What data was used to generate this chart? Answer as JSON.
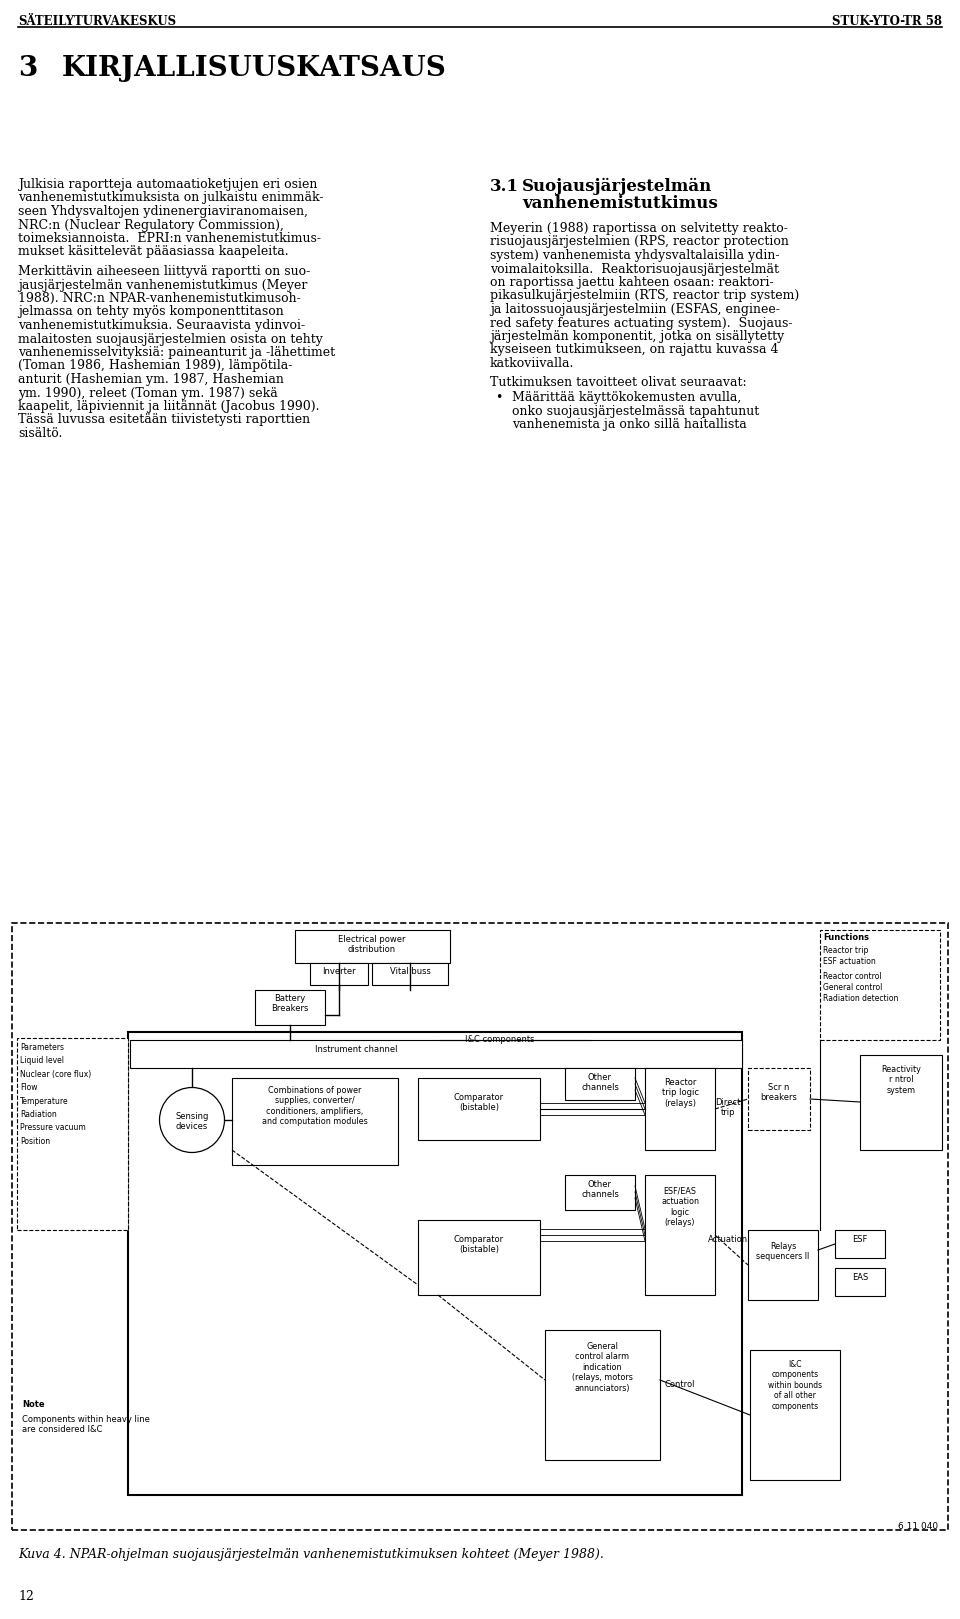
{
  "header_left": "SÄTEILYTURVAKESKUS",
  "header_right": "STUK-YTO-TR 58",
  "chapter_num": "3",
  "chapter_title": "KIRJALLISUUSKATSAUS",
  "page_num": "12",
  "bg_color": "#ffffff",
  "text_color": "#000000",
  "caption": "Kuva 4. NPAR-ohjelman suojausjärjestelmän vanhenemistutkimuksen kohteet (Meyer 1988).",
  "left_para1_lines": [
    "Julkisia raportteja automaatioketjujen eri osien",
    "vanhenemistutkimuksista on julkaistu enimmäk-",
    "seen Yhdysvaltojen ydinenergiaviranomaisen,",
    "NRC:n (Nuclear Regulatory Commission),",
    "toimeksiannoista.  EPRI:n vanhenemistutkimus-",
    "mukset käsittelevät pääasiassa kaapeleita."
  ],
  "left_para2_lines": [
    "Merkittävin aiheeseen liittyvä raportti on suo-",
    "jausjärjestelmän vanhenemistutkimus (Meyer",
    "1988). NRC:n NPAR-vanhenemistutkimusoh-",
    "jelmassa on tehty myös komponenttitason",
    "vanhenemistutkimuksia. Seuraavista ydinvoi-",
    "malaitosten suojausjärjestelmien osista on tehty",
    "vanhenemisselvityksiä: paineanturit ja -lähettimet",
    "(Toman 1986, Hashemian 1989), lämpötila-",
    "anturit (Hashemian ym. 1987, Hashemian",
    "ym. 1990), releet (Toman ym. 1987) sekä",
    "kaapelit, läpiviennit ja liitännät (Jacobus 1990).",
    "Tässä luvussa esitetään tiivistetysti raporttien",
    "sisältö."
  ],
  "right_heading_num": "3.1",
  "right_heading_text": "Suojausjärjestelmän\nvanhenemistutkimus",
  "right_para1_lines": [
    "Meyerin (1988) raportissa on selvitetty reakto-",
    "risuojausjärjestelmien (RPS, reactor protection",
    "system) vanhenemista yhdysvaltalaisilla ydin-",
    "voimalaitoksilla.  Reaktorisuojausjärjestelmät",
    "on raportissa jaettu kahteen osaan: reaktori-",
    "pikasulkujärjestelmiin (RTS, reactor trip system)",
    "ja laitossuojausjärjestelmiin (ESFAS, enginee-",
    "red safety features actuating system).  Suojaus-",
    "järjestelmän komponentit, jotka on sisällytetty",
    "kyseiseen tutkimukseen, on rajattu kuvassa 4",
    "katkoviivalla."
  ],
  "right_para2_head": "Tutkimuksen tavoitteet olivat seuraavat:",
  "right_bullet": "Määrittää käyttökokemusten avulla,\nonko suojausjärjestelmässä tapahtunut\nvanhenemista ja onko sillä haitallista"
}
